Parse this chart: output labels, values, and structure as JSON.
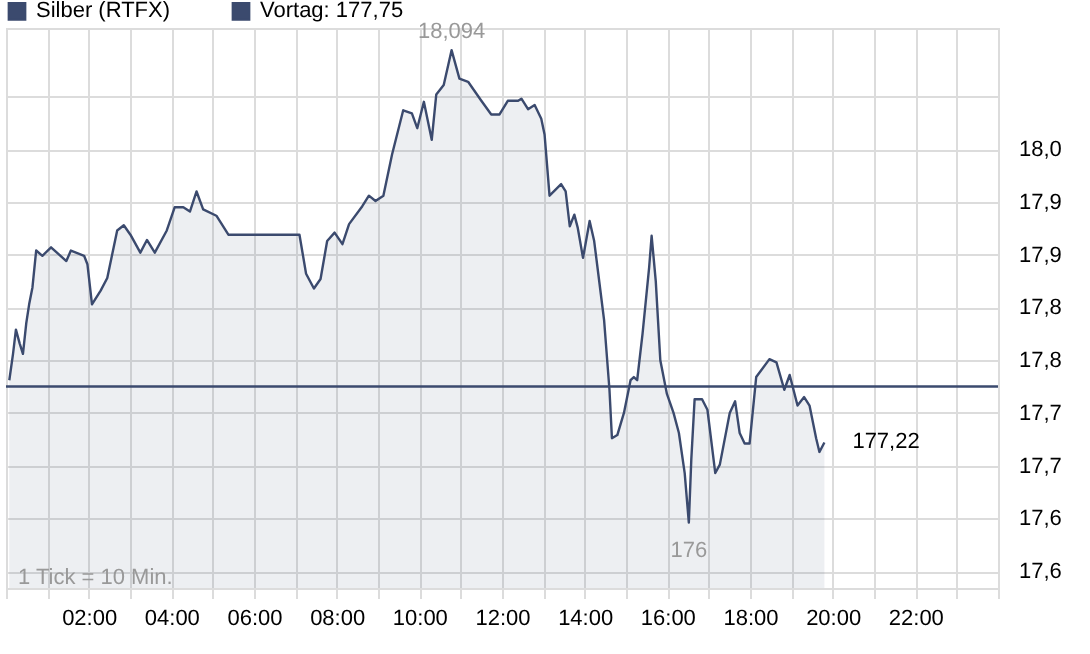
{
  "chart_data": {
    "type": "area",
    "legend": "top left",
    "grid": true,
    "xlim": [
      0,
      24
    ],
    "xticks": [
      {
        "value": 0,
        "label": null
      },
      {
        "value": 1,
        "label": null
      },
      {
        "value": 2,
        "label": "02:00"
      },
      {
        "value": 3,
        "label": null
      },
      {
        "value": 4,
        "label": "04:00"
      },
      {
        "value": 5,
        "label": null
      },
      {
        "value": 6,
        "label": "06:00"
      },
      {
        "value": 7,
        "label": null
      },
      {
        "value": 8,
        "label": "08:00"
      },
      {
        "value": 9,
        "label": null
      },
      {
        "value": 10,
        "label": "10:00"
      },
      {
        "value": 11,
        "label": null
      },
      {
        "value": 12,
        "label": "12:00"
      },
      {
        "value": 13,
        "label": null
      },
      {
        "value": 14,
        "label": "14:00"
      },
      {
        "value": 15,
        "label": null
      },
      {
        "value": 16,
        "label": "16:00"
      },
      {
        "value": 17,
        "label": null
      },
      {
        "value": 18,
        "label": "18:00"
      },
      {
        "value": 19,
        "label": null
      },
      {
        "value": 20,
        "label": "20:00"
      },
      {
        "value": 21,
        "label": null
      },
      {
        "value": 22,
        "label": "22:00"
      },
      {
        "value": 23,
        "label": null
      },
      {
        "value": 24,
        "label": null
      }
    ],
    "ylim": [
      17.584,
      18.115
    ],
    "yticks": [
      {
        "value": 17.6,
        "label": "17,6"
      },
      {
        "value": 17.65,
        "label": "17,6"
      },
      {
        "value": 17.7,
        "label": "17,7"
      },
      {
        "value": 17.75,
        "label": "17,7"
      },
      {
        "value": 17.8,
        "label": "17,8"
      },
      {
        "value": 17.85,
        "label": "17,8"
      },
      {
        "value": 17.9,
        "label": "17,9"
      },
      {
        "value": 17.95,
        "label": "17,9"
      },
      {
        "value": 18.0,
        "label": "18,0"
      },
      {
        "value": 18.05,
        "label": null
      }
    ],
    "x": [
      0.08,
      0.17,
      0.24,
      0.33,
      0.41,
      0.49,
      0.56,
      0.64,
      0.73,
      0.88,
      1.09,
      1.46,
      1.57,
      1.89,
      1.97,
      2.08,
      2.29,
      2.45,
      2.69,
      2.85,
      3.01,
      3.25,
      3.41,
      3.6,
      3.89,
      4.08,
      4.29,
      4.45,
      4.61,
      4.77,
      5.09,
      5.38,
      7.1,
      7.26,
      7.45,
      7.61,
      7.77,
      7.95,
      8.14,
      8.3,
      8.62,
      8.78,
      8.94,
      9.13,
      9.34,
      9.61,
      9.82,
      9.95,
      10.11,
      10.3,
      10.41,
      10.59,
      10.78,
      10.97,
      11.18,
      11.5,
      11.74,
      11.94,
      12.14,
      12.39,
      12.47,
      12.63,
      12.79,
      12.95,
      13.03,
      13.15,
      13.43,
      13.54,
      13.64,
      13.75,
      13.83,
      13.96,
      14.12,
      14.23,
      14.39,
      14.47,
      14.6,
      14.66,
      14.79,
      14.95,
      15.11,
      15.19,
      15.27,
      15.4,
      15.56,
      15.62,
      15.72,
      15.83,
      15.99,
      16.15,
      16.28,
      16.42,
      16.52,
      16.58,
      16.66,
      16.84,
      16.97,
      17.16,
      17.27,
      17.51,
      17.64,
      17.75,
      17.87,
      17.99,
      18.15,
      18.47,
      18.64,
      18.83,
      18.96,
      19.15,
      19.31,
      19.44,
      19.6,
      19.68,
      19.8
    ],
    "series": [
      {
        "name": "Silber (RTFX)",
        "color": "#3b4a6e",
        "values": [
          17.781,
          17.806,
          17.829,
          17.816,
          17.806,
          17.835,
          17.853,
          17.869,
          17.904,
          17.899,
          17.907,
          17.894,
          17.904,
          17.899,
          17.891,
          17.853,
          17.866,
          17.878,
          17.923,
          17.928,
          17.919,
          17.902,
          17.914,
          17.902,
          17.923,
          17.945,
          17.945,
          17.941,
          17.96,
          17.943,
          17.937,
          17.919,
          17.919,
          17.882,
          17.868,
          17.877,
          17.913,
          17.921,
          17.91,
          17.929,
          17.946,
          17.956,
          17.951,
          17.956,
          17.995,
          18.037,
          18.034,
          18.02,
          18.045,
          18.009,
          18.052,
          18.061,
          18.094,
          18.067,
          18.064,
          18.046,
          18.033,
          18.033,
          18.046,
          18.046,
          18.048,
          18.038,
          18.042,
          18.029,
          18.014,
          17.956,
          17.967,
          17.96,
          17.927,
          17.938,
          17.926,
          17.897,
          17.932,
          17.913,
          17.863,
          17.838,
          17.772,
          17.726,
          17.729,
          17.75,
          17.781,
          17.784,
          17.781,
          17.825,
          17.888,
          17.918,
          17.875,
          17.8,
          17.768,
          17.75,
          17.731,
          17.693,
          17.646,
          17.706,
          17.763,
          17.763,
          17.753,
          17.693,
          17.701,
          17.75,
          17.761,
          17.731,
          17.721,
          17.721,
          17.784,
          17.801,
          17.798,
          17.772,
          17.786,
          17.757,
          17.765,
          17.757,
          17.726,
          17.713,
          17.722
        ]
      },
      {
        "name": "Vortag: 177,75",
        "type": "line",
        "color": "#3b4a6e",
        "x": [
          0,
          24
        ],
        "values": [
          17.775,
          17.775
        ]
      }
    ],
    "annotations": [
      {
        "text": "18,094",
        "x": 10.78,
        "y": 18.094
      },
      {
        "text": "176",
        "x": 16.52,
        "y": 17.646
      },
      {
        "text": "177,22",
        "x": 19.8,
        "y": 17.722
      },
      "1 Tick = 10 Min."
    ]
  }
}
